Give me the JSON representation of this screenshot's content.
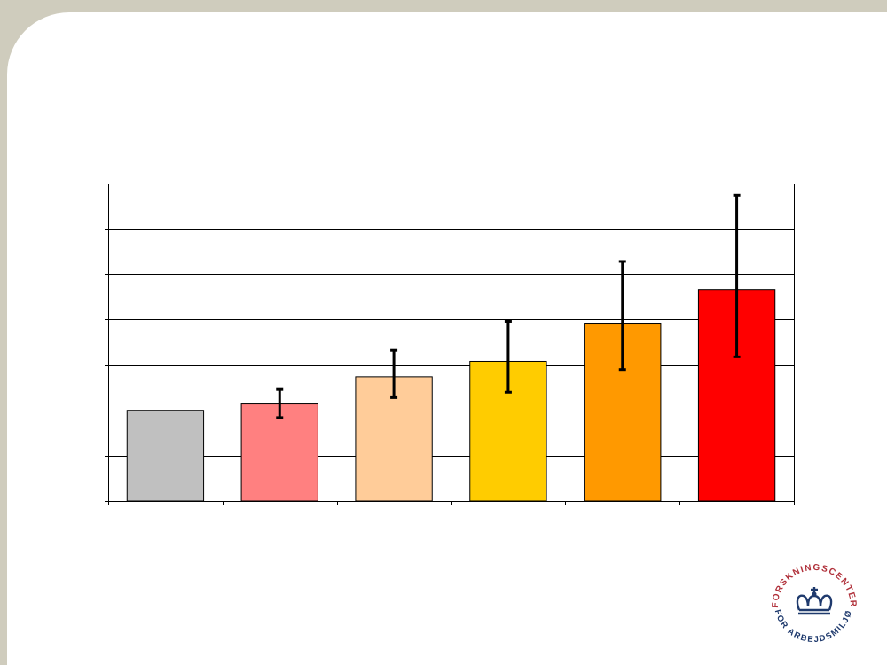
{
  "colors": {
    "frame": "#cfccbd",
    "slide": "#ffffff",
    "grid": "#000000",
    "logo": "#1f3a6d",
    "logo_text": "#b0303a"
  },
  "chart_data": {
    "type": "bar",
    "title": "",
    "xlabel": "",
    "ylabel": "",
    "categories": [
      "",
      "",
      "",
      "",
      "",
      ""
    ],
    "values": [
      1.0,
      1.07,
      1.37,
      1.54,
      1.96,
      2.33
    ],
    "error_low": [
      1.0,
      0.92,
      1.14,
      1.2,
      1.45,
      1.59
    ],
    "error_high": [
      1.0,
      1.23,
      1.66,
      1.98,
      2.64,
      3.37
    ],
    "ylim": [
      0,
      3.5
    ],
    "yticks": [
      0,
      0.5,
      1.0,
      1.5,
      2.0,
      2.5,
      3.0,
      3.5
    ],
    "grid": true,
    "legend": "none",
    "bar_colors": [
      "#c0c0c0",
      "#ff8080",
      "#ffcc99",
      "#ffcc00",
      "#ff9900",
      "#ff0000"
    ]
  },
  "logo": {
    "name": "crown-seal",
    "text_top": "FORSKNINGSCENTER",
    "text_bottom": "FOR ARBEJDSMILJØ"
  }
}
